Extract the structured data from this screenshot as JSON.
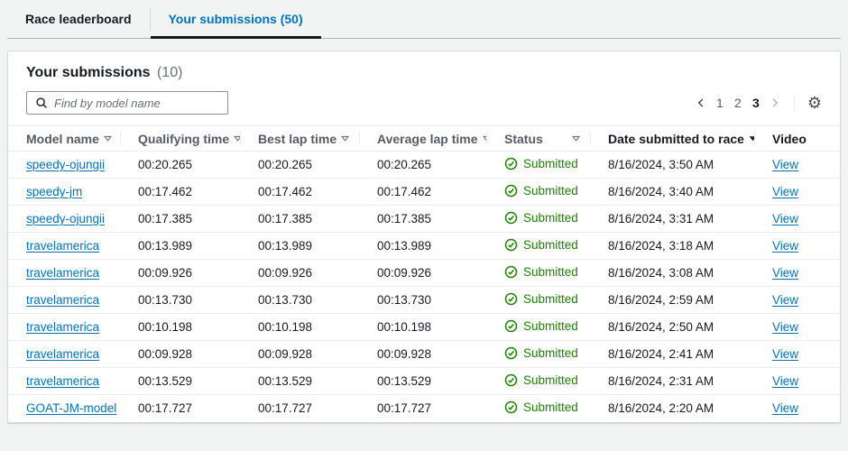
{
  "tabs": {
    "items": [
      {
        "label": "Race leaderboard",
        "active": false
      },
      {
        "label": "Your submissions (50)",
        "active": true
      }
    ]
  },
  "panel": {
    "title": "Your submissions",
    "count": "(10)"
  },
  "search": {
    "placeholder": "Find by model name",
    "value": ""
  },
  "pagination": {
    "pages": [
      "1",
      "2",
      "3"
    ],
    "current_page": "3"
  },
  "icons": {
    "gear": "⚙",
    "search": "magnifier",
    "status_ok": "check-circle",
    "prev": "chevron-left",
    "next": "chevron-right",
    "sort": "caret-down"
  },
  "table": {
    "columns": [
      {
        "label": "Model name",
        "sortable": true,
        "sorted": null
      },
      {
        "label": "Qualifying time",
        "sortable": true,
        "sorted": null
      },
      {
        "label": "Best lap time",
        "sortable": true,
        "sorted": null
      },
      {
        "label": "Average lap time",
        "sortable": true,
        "sorted": null
      },
      {
        "label": "Status",
        "sortable": true,
        "sorted": null
      },
      {
        "label": "Date submitted to race",
        "sortable": true,
        "sorted": "desc"
      },
      {
        "label": "Video",
        "sortable": false,
        "sorted": null
      }
    ],
    "rows": [
      {
        "model_name": "speedy-ojungii",
        "qualifying_time": "00:20.265",
        "best_lap_time": "00:20.265",
        "average_lap_time": "00:20.265",
        "status": "Submitted",
        "date_submitted": "8/16/2024, 3:50 AM",
        "video": "View"
      },
      {
        "model_name": "speedy-jm",
        "qualifying_time": "00:17.462",
        "best_lap_time": "00:17.462",
        "average_lap_time": "00:17.462",
        "status": "Submitted",
        "date_submitted": "8/16/2024, 3:40 AM",
        "video": "View"
      },
      {
        "model_name": "speedy-ojungii",
        "qualifying_time": "00:17.385",
        "best_lap_time": "00:17.385",
        "average_lap_time": "00:17.385",
        "status": "Submitted",
        "date_submitted": "8/16/2024, 3:31 AM",
        "video": "View"
      },
      {
        "model_name": "travelamerica",
        "qualifying_time": "00:13.989",
        "best_lap_time": "00:13.989",
        "average_lap_time": "00:13.989",
        "status": "Submitted",
        "date_submitted": "8/16/2024, 3:18 AM",
        "video": "View"
      },
      {
        "model_name": "travelamerica",
        "qualifying_time": "00:09.926",
        "best_lap_time": "00:09.926",
        "average_lap_time": "00:09.926",
        "status": "Submitted",
        "date_submitted": "8/16/2024, 3:08 AM",
        "video": "View"
      },
      {
        "model_name": "travelamerica",
        "qualifying_time": "00:13.730",
        "best_lap_time": "00:13.730",
        "average_lap_time": "00:13.730",
        "status": "Submitted",
        "date_submitted": "8/16/2024, 2:59 AM",
        "video": "View"
      },
      {
        "model_name": "travelamerica",
        "qualifying_time": "00:10.198",
        "best_lap_time": "00:10.198",
        "average_lap_time": "00:10.198",
        "status": "Submitted",
        "date_submitted": "8/16/2024, 2:50 AM",
        "video": "View"
      },
      {
        "model_name": "travelamerica",
        "qualifying_time": "00:09.928",
        "best_lap_time": "00:09.928",
        "average_lap_time": "00:09.928",
        "status": "Submitted",
        "date_submitted": "8/16/2024, 2:41 AM",
        "video": "View"
      },
      {
        "model_name": "travelamerica",
        "qualifying_time": "00:13.529",
        "best_lap_time": "00:13.529",
        "average_lap_time": "00:13.529",
        "status": "Submitted",
        "date_submitted": "8/16/2024, 2:31 AM",
        "video": "View"
      },
      {
        "model_name": "GOAT-JM-model",
        "qualifying_time": "00:17.727",
        "best_lap_time": "00:17.727",
        "average_lap_time": "00:17.727",
        "status": "Submitted",
        "date_submitted": "8/16/2024, 2:20 AM",
        "video": "View"
      }
    ]
  },
  "colors": {
    "link": "#0073bb",
    "success_green": "#1d8102",
    "active_tab_underline": "#16191f",
    "page_background": "#f2f3f3"
  }
}
